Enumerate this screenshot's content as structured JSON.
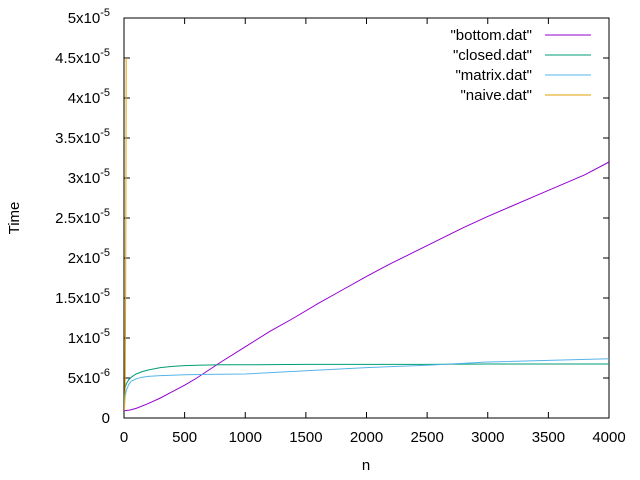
{
  "chart_data": {
    "type": "line",
    "xlabel": "n",
    "ylabel": "Time",
    "xlim": [
      0,
      4000
    ],
    "ylim": [
      0,
      5e-05
    ],
    "grid": false,
    "legend_position": "top-right",
    "x_ticks": [
      {
        "value": 0,
        "label": "0"
      },
      {
        "value": 500,
        "label": "500"
      },
      {
        "value": 1000,
        "label": "1000"
      },
      {
        "value": 1500,
        "label": "1500"
      },
      {
        "value": 2000,
        "label": "2000"
      },
      {
        "value": 2500,
        "label": "2500"
      },
      {
        "value": 3000,
        "label": "3000"
      },
      {
        "value": 3500,
        "label": "3500"
      },
      {
        "value": 4000,
        "label": "4000"
      }
    ],
    "y_ticks": [
      {
        "value": 0,
        "mantissa": "0",
        "exponent": ""
      },
      {
        "value": 5e-06,
        "mantissa": "5x10",
        "exponent": "-6"
      },
      {
        "value": 1e-05,
        "mantissa": "1x10",
        "exponent": "-5"
      },
      {
        "value": 1.5e-05,
        "mantissa": "1.5x10",
        "exponent": "-5"
      },
      {
        "value": 2e-05,
        "mantissa": "2x10",
        "exponent": "-5"
      },
      {
        "value": 2.5e-05,
        "mantissa": "2.5x10",
        "exponent": "-5"
      },
      {
        "value": 3e-05,
        "mantissa": "3x10",
        "exponent": "-5"
      },
      {
        "value": 3.5e-05,
        "mantissa": "3.5x10",
        "exponent": "-5"
      },
      {
        "value": 4e-05,
        "mantissa": "4x10",
        "exponent": "-5"
      },
      {
        "value": 4.5e-05,
        "mantissa": "4.5x10",
        "exponent": "-5"
      },
      {
        "value": 5e-05,
        "mantissa": "5x10",
        "exponent": "-5"
      }
    ],
    "series": [
      {
        "name": "\"bottom.dat\"",
        "color": "#9400d3",
        "x": [
          1,
          50,
          100,
          200,
          300,
          400,
          500,
          600,
          700,
          800,
          1000,
          1200,
          1400,
          1600,
          1800,
          2000,
          2200,
          2400,
          2600,
          2800,
          3000,
          3200,
          3400,
          3600,
          3800,
          4000
        ],
        "y": [
          9e-07,
          1e-06,
          1.2e-06,
          1.8e-06,
          2.5e-06,
          3.3e-06,
          4.1e-06,
          5e-06,
          6e-06,
          7e-06,
          8.9e-06,
          1.08e-05,
          1.25e-05,
          1.43e-05,
          1.6e-05,
          1.77e-05,
          1.93e-05,
          2.08e-05,
          2.23e-05,
          2.38e-05,
          2.52e-05,
          2.65e-05,
          2.78e-05,
          2.91e-05,
          3.04e-05,
          3.2e-05
        ]
      },
      {
        "name": "\"closed.dat\"",
        "color": "#009e73",
        "x": [
          1,
          5,
          10,
          20,
          40,
          60,
          80,
          100,
          150,
          200,
          300,
          400,
          500,
          600,
          800,
          1000,
          1500,
          2000,
          2500,
          3000,
          3500,
          4000
        ],
        "y": [
          1e-06,
          3e-06,
          3.8e-06,
          4.3e-06,
          4.8e-06,
          5.1e-06,
          5.3e-06,
          5.5e-06,
          5.8e-06,
          6e-06,
          6.3e-06,
          6.45e-06,
          6.55e-06,
          6.6e-06,
          6.65e-06,
          6.65e-06,
          6.7e-06,
          6.7e-06,
          6.7e-06,
          6.75e-06,
          6.75e-06,
          6.75e-06
        ]
      },
      {
        "name": "\"matrix.dat\"",
        "color": "#56b4e9",
        "x": [
          1,
          5,
          10,
          20,
          40,
          60,
          100,
          150,
          200,
          300,
          400,
          500,
          700,
          1000,
          1500,
          2000,
          2500,
          3000,
          3500,
          4000
        ],
        "y": [
          1e-06,
          2e-06,
          2.8e-06,
          3.5e-06,
          4.2e-06,
          4.6e-06,
          4.9e-06,
          5.1e-06,
          5.2e-06,
          5.3e-06,
          5.35e-06,
          5.4e-06,
          5.45e-06,
          5.5e-06,
          5.9e-06,
          6.3e-06,
          6.6e-06,
          7e-06,
          7.2e-06,
          7.4e-06
        ]
      },
      {
        "name": "\"naive.dat\"",
        "color": "#e69f00",
        "x": [
          1,
          3,
          5,
          8,
          10,
          12,
          14,
          16,
          18
        ],
        "y": [
          1e-06,
          1e-06,
          1.5e-06,
          3e-06,
          6e-06,
          1.1e-05,
          1.65e-05,
          3e-05,
          4.5e-05
        ]
      }
    ]
  }
}
